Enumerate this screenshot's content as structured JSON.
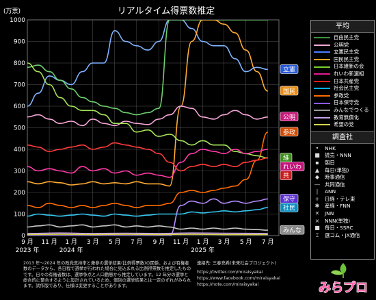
{
  "title": "リアルタイム得票数推定",
  "y_unit": "(万票)",
  "legend_avg": {
    "heading": "平均",
    "items": [
      {
        "label": "自由民主党",
        "color": "#3f8f3f"
      },
      {
        "label": "公明党",
        "color": "#f6a6d6"
      },
      {
        "label": "立憲民主党",
        "color": "#4a7fff"
      },
      {
        "label": "国民民主党",
        "color": "#ffa41b"
      },
      {
        "label": "日本維新の会",
        "color": "#7bd02b"
      },
      {
        "label": "れいわ新選組",
        "color": "#e61a8d"
      },
      {
        "label": "日本共産党",
        "color": "#db1e1e"
      },
      {
        "label": "社会民主党",
        "color": "#00b3e6"
      },
      {
        "label": "参政党",
        "color": "#ff6b00"
      },
      {
        "label": "日本保守党",
        "color": "#8c5cff"
      },
      {
        "label": "みんなでつくる",
        "color": "#9a9a9a"
      },
      {
        "label": "教育無償化",
        "color": "#c89fef"
      },
      {
        "label": "希望の党",
        "color": "#d6d64a"
      }
    ]
  },
  "legend_pollster": {
    "heading": "調査社",
    "items": [
      {
        "label": "NHK",
        "marker": "•"
      },
      {
        "label": "読売・NNN",
        "marker": "■"
      },
      {
        "label": "朝日",
        "marker": "▪"
      },
      {
        "label": "毎日(単独)",
        "marker": "▲"
      },
      {
        "label": "時事通信",
        "marker": "◆"
      },
      {
        "label": "共同通信",
        "marker": "―"
      },
      {
        "label": "ANN",
        "marker": "|"
      },
      {
        "label": "日経・テレ東",
        "marker": "+"
      },
      {
        "label": "産経・FNN",
        "marker": "✱"
      },
      {
        "label": "JNN",
        "marker": "✕"
      },
      {
        "label": "NNN(単独)",
        "marker": "×"
      },
      {
        "label": "毎日・SSRC",
        "marker": "■"
      },
      {
        "label": "選コム・JX通信",
        "marker": "⌶"
      }
    ]
  },
  "footer": {
    "note": "2013 年～2024 年の政党支持率と衆参の選挙結果(比例得票数)の関係、および有権者数のデータから、各日程で選挙が行われた場合に見込まれる比例得票数を推定したものです。日々の有権者数は、選挙争点と人口動態から推定しています。12 年分の選挙と総合的に整合するように設計されているため、個別の選挙結果とは一定のずれがみられます。試作版であり、仕様は変更することがあります。",
    "contact": "連絡先: 三春充希(未来社会プロジェクト)",
    "links": [
      "https://twitter.com/miraisyakai",
      "https://www.facebook.com/miraisyakai",
      "https://note.com/miraisyakai"
    ]
  },
  "logo_text": "みらプロ",
  "chart_data": {
    "type": "line",
    "title": "リアルタイム得票数推定",
    "ylabel": "(万票)",
    "ylim": [
      0,
      1000
    ],
    "yticks": [
      0,
      100,
      200,
      300,
      400,
      500,
      600,
      700,
      800,
      900,
      1000
    ],
    "xlim": [
      "2023-09-01",
      "2025-08-01"
    ],
    "xticks": [
      {
        "date": "2023-09-01",
        "label": "9 月",
        "year": "2023 年"
      },
      {
        "date": "2023-11-01",
        "label": "11 月",
        "year": ""
      },
      {
        "date": "2024-01-01",
        "label": "1 月",
        "year": "2024 年"
      },
      {
        "date": "2024-03-01",
        "label": "3 月",
        "year": ""
      },
      {
        "date": "2024-05-01",
        "label": "5 月",
        "year": ""
      },
      {
        "date": "2024-07-01",
        "label": "7 月",
        "year": ""
      },
      {
        "date": "2024-09-01",
        "label": "9 月",
        "year": ""
      },
      {
        "date": "2024-11-01",
        "label": "11 月",
        "year": ""
      },
      {
        "date": "2025-01-01",
        "label": "1 月",
        "year": "2025 年"
      },
      {
        "date": "2025-03-01",
        "label": "3 月",
        "year": ""
      },
      {
        "date": "2025-05-01",
        "label": "5 月",
        "year": ""
      },
      {
        "date": "2025-07-01",
        "label": "7 月",
        "year": ""
      }
    ],
    "grid": true,
    "series": [
      {
        "name": "立憲民主党",
        "color": "#7fb2ff",
        "tag": "立憲",
        "tag_color": "#2a5bd7",
        "x": [
          "2023-09-01",
          "2023-10-01",
          "2023-11-01",
          "2023-12-01",
          "2024-01-01",
          "2024-02-01",
          "2024-03-01",
          "2024-04-01",
          "2024-05-01",
          "2024-06-01",
          "2024-07-01",
          "2024-08-01",
          "2024-09-01",
          "2024-10-01",
          "2024-11-01",
          "2024-12-01",
          "2025-01-01",
          "2025-02-01",
          "2025-03-01",
          "2025-04-01",
          "2025-05-01",
          "2025-06-01",
          "2025-07-01"
        ],
        "y": [
          600,
          660,
          740,
          720,
          700,
          760,
          800,
          800,
          950,
          900,
          880,
          860,
          900,
          1000,
          1000,
          960,
          900,
          880,
          880,
          820,
          760,
          780,
          770
        ]
      },
      {
        "name": "自由民主党",
        "color": "#6fd06f",
        "tag": "",
        "tag_color": "#2f7f2f",
        "x": [
          "2023-09-01",
          "2023-10-01",
          "2023-11-01",
          "2023-12-01",
          "2024-01-01",
          "2024-02-01",
          "2024-03-01",
          "2024-04-01",
          "2024-05-01",
          "2024-06-01",
          "2024-07-01",
          "2024-08-01",
          "2024-09-01",
          "2024-10-01",
          "2024-11-01",
          "2024-12-01",
          "2025-01-01",
          "2025-02-01",
          "2025-03-01",
          "2025-04-01",
          "2025-05-01",
          "2025-06-01",
          "2025-07-01"
        ],
        "y": [
          780,
          790,
          760,
          720,
          680,
          640,
          620,
          600,
          590,
          570,
          560,
          570,
          590,
          1000,
          1000,
          1000,
          1000,
          1000,
          1000,
          1000,
          1000,
          1000,
          1000
        ]
      },
      {
        "name": "国民民主党",
        "color": "#ffaa33",
        "tag": "国民",
        "tag_color": "#e88a10",
        "x": [
          "2023-09-01",
          "2023-10-01",
          "2023-11-01",
          "2023-12-01",
          "2024-01-01",
          "2024-02-01",
          "2024-03-01",
          "2024-04-01",
          "2024-05-01",
          "2024-06-01",
          "2024-07-01",
          "2024-08-01",
          "2024-09-01",
          "2024-10-01",
          "2024-11-01",
          "2024-12-01",
          "2025-01-01",
          "2025-02-01",
          "2025-03-01",
          "2025-04-01",
          "2025-05-01",
          "2025-06-01",
          "2025-07-01"
        ],
        "y": [
          250,
          240,
          250,
          245,
          235,
          240,
          250,
          240,
          245,
          240,
          250,
          240,
          240,
          230,
          600,
          900,
          1000,
          1000,
          980,
          940,
          860,
          760,
          670
        ]
      },
      {
        "name": "公明党",
        "color": "#f6a6d6",
        "tag": "公明",
        "tag_color": "#c81a7a",
        "x": [
          "2023-09-01",
          "2023-10-01",
          "2023-11-01",
          "2023-12-01",
          "2024-01-01",
          "2024-02-01",
          "2024-03-01",
          "2024-04-01",
          "2024-05-01",
          "2024-06-01",
          "2024-07-01",
          "2024-08-01",
          "2024-09-01",
          "2024-10-01",
          "2024-11-01",
          "2024-12-01",
          "2025-01-01",
          "2025-02-01",
          "2025-03-01",
          "2025-04-01",
          "2025-05-01",
          "2025-06-01",
          "2025-07-01"
        ],
        "y": [
          550,
          560,
          540,
          520,
          530,
          510,
          540,
          520,
          510,
          530,
          520,
          515,
          540,
          560,
          600,
          590,
          550,
          540,
          560,
          580,
          560,
          540,
          550
        ]
      },
      {
        "name": "参政党",
        "color": "#ff6b00",
        "tag": "参政",
        "tag_color": "#d34a00",
        "x": [
          "2023-09-01",
          "2023-10-01",
          "2023-11-01",
          "2023-12-01",
          "2024-01-01",
          "2024-02-01",
          "2024-03-01",
          "2024-04-01",
          "2024-05-01",
          "2024-06-01",
          "2024-07-01",
          "2024-08-01",
          "2024-09-01",
          "2024-10-01",
          "2024-11-01",
          "2024-12-01",
          "2025-01-01",
          "2025-02-01",
          "2025-03-01",
          "2025-04-01",
          "2025-05-01",
          "2025-06-01",
          "2025-07-01"
        ],
        "y": [
          140,
          130,
          150,
          140,
          130,
          140,
          130,
          140,
          150,
          140,
          130,
          140,
          140,
          150,
          200,
          210,
          200,
          210,
          220,
          230,
          260,
          350,
          480
        ]
      },
      {
        "name": "日本維新の会",
        "color": "#a6e25a",
        "tag": "維",
        "tag_color": "#3f8f1f",
        "x": [
          "2023-09-01",
          "2023-10-01",
          "2023-11-01",
          "2023-12-01",
          "2024-01-01",
          "2024-02-01",
          "2024-03-01",
          "2024-04-01",
          "2024-05-01",
          "2024-06-01",
          "2024-07-01",
          "2024-08-01",
          "2024-09-01",
          "2024-10-01",
          "2024-11-01",
          "2024-12-01",
          "2025-01-01",
          "2025-02-01",
          "2025-03-01",
          "2025-04-01",
          "2025-05-01",
          "2025-06-01",
          "2025-07-01"
        ],
        "y": [
          800,
          760,
          700,
          640,
          600,
          580,
          580,
          560,
          520,
          520,
          480,
          490,
          460,
          470,
          440,
          420,
          440,
          420,
          420,
          390,
          380,
          370,
          360
        ]
      },
      {
        "name": "れいわ新選組",
        "color": "#ff3aa8",
        "tag": "れいわ",
        "tag_color": "#c3157a",
        "x": [
          "2023-09-01",
          "2023-10-01",
          "2023-11-01",
          "2023-12-01",
          "2024-01-01",
          "2024-02-01",
          "2024-03-01",
          "2024-04-01",
          "2024-05-01",
          "2024-06-01",
          "2024-07-01",
          "2024-08-01",
          "2024-09-01",
          "2024-10-01",
          "2024-11-01",
          "2024-12-01",
          "2025-01-01",
          "2025-02-01",
          "2025-03-01",
          "2025-04-01",
          "2025-05-01",
          "2025-06-01",
          "2025-07-01"
        ],
        "y": [
          320,
          300,
          310,
          300,
          290,
          320,
          300,
          310,
          290,
          300,
          280,
          290,
          280,
          270,
          340,
          380,
          400,
          390,
          380,
          400,
          380,
          390,
          400
        ]
      },
      {
        "name": "日本共産党",
        "color": "#ff3b3b",
        "tag": "共",
        "tag_color": "#c81e1e",
        "x": [
          "2023-09-01",
          "2023-10-01",
          "2023-11-01",
          "2023-12-01",
          "2024-01-01",
          "2024-02-01",
          "2024-03-01",
          "2024-04-01",
          "2024-05-01",
          "2024-06-01",
          "2024-07-01",
          "2024-08-01",
          "2024-09-01",
          "2024-10-01",
          "2024-11-01",
          "2024-12-01",
          "2025-01-01",
          "2025-02-01",
          "2025-03-01",
          "2025-04-01",
          "2025-05-01",
          "2025-06-01",
          "2025-07-01"
        ],
        "y": [
          420,
          410,
          390,
          400,
          410,
          420,
          400,
          410,
          430,
          420,
          410,
          400,
          380,
          340,
          300,
          320,
          330,
          320,
          330,
          320,
          340,
          350,
          360
        ]
      },
      {
        "name": "日本保守党",
        "color": "#b48cff",
        "tag": "保守",
        "tag_color": "#5a2ed0",
        "x": [
          "2023-09-01",
          "2023-10-01",
          "2023-11-01",
          "2023-12-01",
          "2024-01-01",
          "2024-02-01",
          "2024-03-01",
          "2024-04-01",
          "2024-05-01",
          "2024-06-01",
          "2024-07-01",
          "2024-08-01",
          "2024-09-01",
          "2024-10-01",
          "2024-11-01",
          "2024-12-01",
          "2025-01-01",
          "2025-02-01",
          "2025-03-01",
          "2025-04-01",
          "2025-05-01",
          "2025-06-01",
          "2025-07-01"
        ],
        "y": [
          0,
          0,
          0,
          0,
          0,
          0,
          0,
          0,
          0,
          0,
          0,
          0,
          0,
          0,
          140,
          160,
          150,
          170,
          150,
          160,
          150,
          160,
          170
        ]
      },
      {
        "name": "社会民主党",
        "color": "#36c6f0",
        "tag": "社民",
        "tag_color": "#0b8fbf",
        "x": [
          "2023-09-01",
          "2023-10-01",
          "2023-11-01",
          "2023-12-01",
          "2024-01-01",
          "2024-02-01",
          "2024-03-01",
          "2024-04-01",
          "2024-05-01",
          "2024-06-01",
          "2024-07-01",
          "2024-08-01",
          "2024-09-01",
          "2024-10-01",
          "2024-11-01",
          "2024-12-01",
          "2025-01-01",
          "2025-02-01",
          "2025-03-01",
          "2025-04-01",
          "2025-05-01",
          "2025-06-01",
          "2025-07-01"
        ],
        "y": [
          90,
          100,
          95,
          90,
          95,
          100,
          95,
          90,
          100,
          95,
          90,
          95,
          100,
          100,
          100,
          110,
          105,
          110,
          115,
          110,
          115,
          120,
          130
        ]
      },
      {
        "name": "みんなでつくる",
        "color": "#c8c8c8",
        "tag": "みんな",
        "tag_color": "#8a8a8a",
        "x": [
          "2023-09-01",
          "2023-10-01",
          "2023-11-01",
          "2023-12-01",
          "2024-01-01",
          "2024-02-01",
          "2024-03-01",
          "2024-04-01",
          "2024-05-01",
          "2024-06-01",
          "2024-07-01",
          "2024-08-01",
          "2024-09-01",
          "2024-10-01",
          "2024-11-01",
          "2024-12-01",
          "2025-01-01",
          "2025-02-01",
          "2025-03-01",
          "2025-04-01",
          "2025-05-01",
          "2025-06-01",
          "2025-07-01"
        ],
        "y": [
          40,
          45,
          50,
          40,
          45,
          50,
          40,
          45,
          50,
          40,
          45,
          40,
          45,
          40,
          30,
          35,
          30,
          35,
          30,
          35,
          30,
          28,
          25
        ]
      },
      {
        "name": "教育無償化",
        "color": "#c89fef",
        "tag": "",
        "tag_color": "#8a60c0",
        "x": [
          "2023-09-01",
          "2023-12-01",
          "2024-03-01",
          "2024-06-01",
          "2024-09-01",
          "2024-12-01",
          "2025-03-01",
          "2025-07-01"
        ],
        "y": [
          10,
          12,
          10,
          11,
          10,
          12,
          11,
          10
        ]
      },
      {
        "name": "希望の党",
        "color": "#d6d64a",
        "tag": "",
        "tag_color": "#8a8a20",
        "x": [
          "2023-09-01",
          "2023-12-01",
          "2024-03-01",
          "2024-06-01",
          "2024-09-01",
          "2024-12-01",
          "2025-03-01",
          "2025-07-01"
        ],
        "y": [
          5,
          6,
          5,
          6,
          5,
          6,
          5,
          5
        ]
      }
    ]
  }
}
